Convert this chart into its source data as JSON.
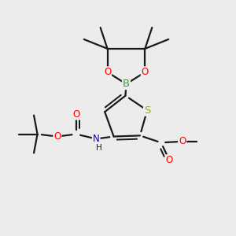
{
  "background_color": "#ececec",
  "bond_color": "#1a1a1a",
  "atom_colors": {
    "O": "#ff0000",
    "N": "#0000dd",
    "B": "#22aa22",
    "S": "#aaaa00",
    "C": "#1a1a1a",
    "H": "#1a1a1a"
  },
  "lw": 1.6,
  "fs": 8.5
}
